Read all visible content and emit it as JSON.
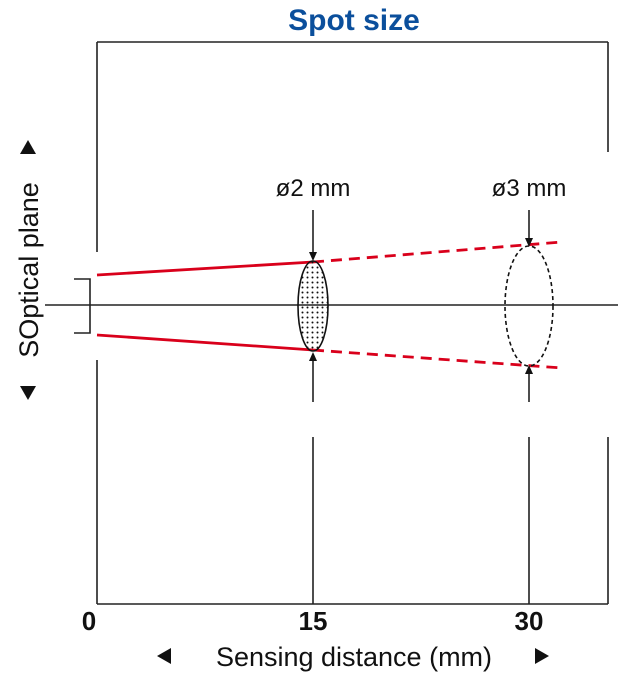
{
  "title": "Spot size",
  "x_axis": {
    "label": "Sensing distance (mm)",
    "ticks": [
      "0",
      "15",
      "30"
    ]
  },
  "y_axis": {
    "label": "SOptical plane"
  },
  "spots": [
    {
      "label": "ø2 mm",
      "distance": 15,
      "style": "dotted"
    },
    {
      "label": "ø3 mm",
      "distance": 30,
      "style": "dashed"
    }
  ],
  "colors": {
    "title": "#0b4f9c",
    "beam": "#d9001b",
    "lines": "#222222"
  }
}
